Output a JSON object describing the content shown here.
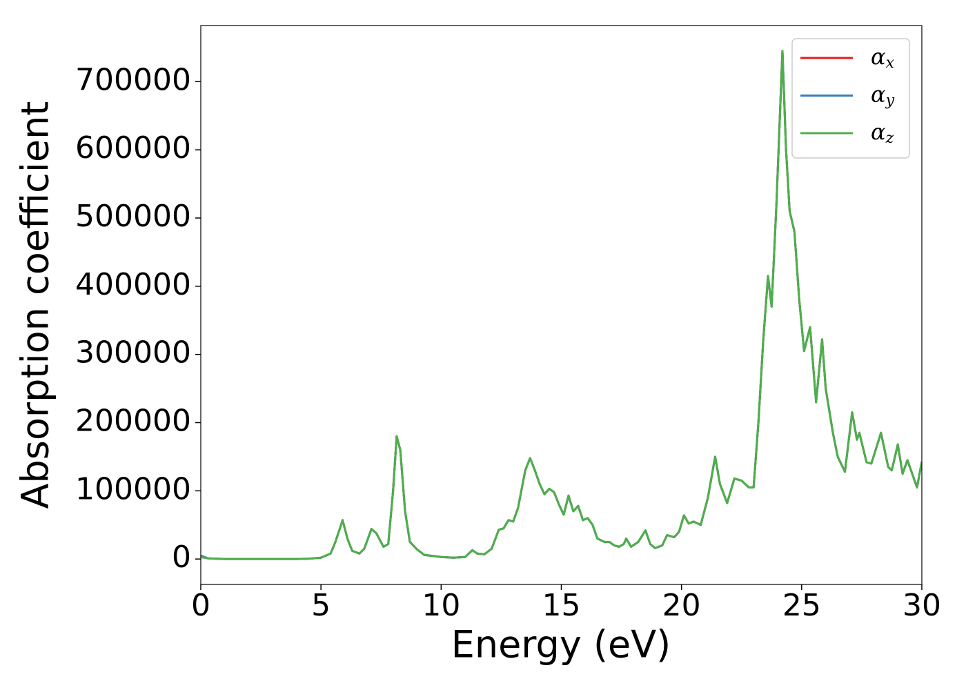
{
  "chart_data": {
    "type": "line",
    "xlabel": "Energy (eV)",
    "ylabel": "Absorption coefficient",
    "x": [
      0,
      0.3,
      1,
      2,
      3,
      4,
      4.5,
      5,
      5.4,
      5.6,
      5.9,
      6.1,
      6.3,
      6.6,
      6.8,
      7.1,
      7.3,
      7.6,
      7.8,
      8.0,
      8.15,
      8.3,
      8.5,
      8.7,
      9.0,
      9.3,
      10,
      10.5,
      11,
      11.3,
      11.5,
      11.8,
      12.1,
      12.4,
      12.6,
      12.8,
      13.0,
      13.2,
      13.5,
      13.7,
      13.9,
      14.1,
      14.3,
      14.5,
      14.7,
      14.9,
      15.1,
      15.3,
      15.5,
      15.7,
      15.9,
      16.1,
      16.3,
      16.5,
      16.8,
      17.0,
      17.2,
      17.4,
      17.6,
      17.7,
      17.9,
      18.2,
      18.5,
      18.7,
      18.9,
      19.2,
      19.4,
      19.7,
      19.9,
      20.1,
      20.3,
      20.5,
      20.8,
      21.1,
      21.4,
      21.6,
      21.9,
      22.2,
      22.5,
      22.8,
      23.0,
      23.2,
      23.4,
      23.6,
      23.75,
      23.95,
      24.2,
      24.35,
      24.5,
      24.7,
      24.9,
      25.1,
      25.35,
      25.6,
      25.85,
      26.0,
      26.3,
      26.5,
      26.8,
      27.1,
      27.3,
      27.4,
      27.7,
      27.9,
      28.3,
      28.6,
      28.75,
      29.0,
      29.2,
      29.4,
      29.8,
      30
    ],
    "series": [
      {
        "name": "αx",
        "color": "#e41a1c",
        "values": [
          3000,
          1000,
          0,
          0,
          0,
          0,
          500,
          2000,
          8000,
          25000,
          57000,
          30000,
          12000,
          8000,
          15000,
          44000,
          38000,
          18000,
          22000,
          100000,
          180000,
          160000,
          70000,
          25000,
          14000,
          6000,
          3000,
          2000,
          3000,
          13000,
          8000,
          7000,
          15000,
          43000,
          45000,
          57000,
          55000,
          75000,
          130000,
          148000,
          130000,
          110000,
          95000,
          103000,
          98000,
          80000,
          65000,
          93000,
          70000,
          78000,
          57000,
          60000,
          50000,
          30000,
          25000,
          25000,
          20000,
          18000,
          22000,
          30000,
          18000,
          25000,
          42000,
          22000,
          16000,
          20000,
          35000,
          32000,
          40000,
          64000,
          52000,
          55000,
          50000,
          90000,
          150000,
          110000,
          82000,
          118000,
          115000,
          105000,
          105000,
          200000,
          320000,
          415000,
          370000,
          520000,
          745000,
          600000,
          510000,
          480000,
          380000,
          305000,
          340000,
          230000,
          322000,
          250000,
          185000,
          150000,
          128000,
          215000,
          175000,
          185000,
          142000,
          140000,
          185000,
          135000,
          130000,
          168000,
          125000,
          145000,
          105000,
          143000
        ]
      },
      {
        "name": "αy",
        "color": "#377eb8",
        "values": [
          5000,
          1000,
          0,
          0,
          0,
          0,
          500,
          2000,
          8000,
          25000,
          57000,
          30000,
          12000,
          8000,
          15000,
          44000,
          38000,
          18000,
          22000,
          100000,
          180000,
          160000,
          70000,
          25000,
          14000,
          6000,
          3000,
          2000,
          3000,
          13000,
          8000,
          7000,
          15000,
          43000,
          45000,
          57000,
          55000,
          75000,
          130000,
          148000,
          130000,
          110000,
          95000,
          103000,
          98000,
          80000,
          65000,
          93000,
          70000,
          78000,
          57000,
          60000,
          50000,
          30000,
          25000,
          25000,
          20000,
          18000,
          22000,
          30000,
          18000,
          25000,
          42000,
          22000,
          16000,
          20000,
          35000,
          32000,
          40000,
          64000,
          52000,
          55000,
          50000,
          90000,
          150000,
          110000,
          82000,
          118000,
          115000,
          105000,
          105000,
          200000,
          320000,
          415000,
          370000,
          520000,
          745000,
          600000,
          510000,
          480000,
          380000,
          305000,
          340000,
          230000,
          322000,
          250000,
          185000,
          150000,
          128000,
          215000,
          175000,
          185000,
          142000,
          140000,
          185000,
          135000,
          130000,
          168000,
          125000,
          145000,
          105000,
          143000
        ]
      },
      {
        "name": "αz",
        "color": "#4daf4a",
        "values": [
          3000,
          1000,
          0,
          0,
          0,
          0,
          500,
          2000,
          8000,
          25000,
          57000,
          30000,
          12000,
          8000,
          15000,
          44000,
          38000,
          18000,
          22000,
          100000,
          180000,
          160000,
          70000,
          25000,
          14000,
          6000,
          3000,
          2000,
          3000,
          13000,
          8000,
          7000,
          15000,
          43000,
          45000,
          57000,
          55000,
          75000,
          130000,
          148000,
          130000,
          110000,
          95000,
          103000,
          98000,
          80000,
          65000,
          93000,
          70000,
          78000,
          57000,
          60000,
          50000,
          30000,
          25000,
          25000,
          20000,
          18000,
          22000,
          30000,
          18000,
          25000,
          42000,
          22000,
          16000,
          20000,
          35000,
          32000,
          40000,
          64000,
          52000,
          55000,
          50000,
          90000,
          150000,
          110000,
          82000,
          118000,
          115000,
          105000,
          105000,
          200000,
          320000,
          415000,
          370000,
          520000,
          745000,
          600000,
          510000,
          480000,
          380000,
          305000,
          340000,
          230000,
          322000,
          250000,
          185000,
          150000,
          128000,
          215000,
          175000,
          185000,
          142000,
          140000,
          185000,
          135000,
          130000,
          168000,
          125000,
          145000,
          105000,
          143000
        ]
      }
    ],
    "xlim": [
      0,
      30
    ],
    "xticks": [
      0,
      5,
      10,
      15,
      20,
      25,
      30
    ],
    "ylim": [
      -37250,
      782250
    ],
    "yticks": [
      0,
      100000,
      200000,
      300000,
      400000,
      500000,
      600000,
      700000
    ],
    "grid": false,
    "legend": "upper right"
  }
}
